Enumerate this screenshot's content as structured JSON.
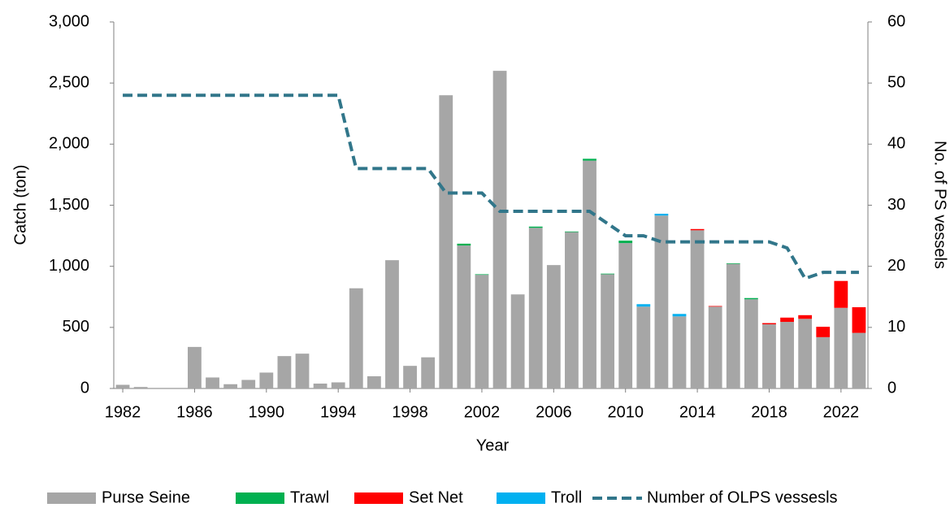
{
  "chart_data": {
    "type": "bar",
    "stacked": true,
    "x_label": "Year",
    "y_label": "Catch (ton)",
    "y2_label": "No. of PS vessels",
    "categories": [
      "1982",
      null,
      null,
      null,
      "1986",
      null,
      null,
      null,
      "1990",
      null,
      null,
      null,
      "1994",
      null,
      null,
      null,
      "1998",
      null,
      null,
      null,
      "2002",
      null,
      null,
      null,
      "2006",
      null,
      null,
      null,
      "2010",
      null,
      null,
      null,
      "2014",
      null,
      null,
      null,
      "2018",
      null,
      null,
      null,
      "2022",
      null
    ],
    "series": [
      {
        "name": "Purse Seine",
        "color": "#a6a6a6",
        "values": [
          30,
          12,
          0,
          0,
          340,
          90,
          35,
          70,
          130,
          265,
          285,
          40,
          50,
          820,
          100,
          1050,
          185,
          255,
          2400,
          1170,
          930,
          2600,
          770,
          1315,
          1010,
          1280,
          1865,
          935,
          1190,
          670,
          1415,
          590,
          1295,
          670,
          1020,
          730,
          525,
          545,
          570,
          420,
          660,
          455
        ]
      },
      {
        "name": "Trawl",
        "color": "#00b050",
        "values": [
          0,
          0,
          0,
          0,
          0,
          0,
          0,
          0,
          0,
          0,
          0,
          0,
          0,
          0,
          0,
          0,
          0,
          0,
          0,
          15,
          5,
          0,
          0,
          10,
          0,
          5,
          15,
          5,
          20,
          0,
          0,
          0,
          0,
          0,
          5,
          10,
          0,
          0,
          0,
          0,
          0,
          0
        ]
      },
      {
        "name": "Set Net",
        "color": "#ff0000",
        "values": [
          0,
          0,
          0,
          0,
          0,
          0,
          0,
          0,
          0,
          0,
          0,
          0,
          0,
          0,
          0,
          0,
          0,
          0,
          0,
          0,
          0,
          0,
          0,
          0,
          0,
          0,
          0,
          0,
          0,
          0,
          0,
          0,
          10,
          5,
          0,
          0,
          10,
          35,
          30,
          85,
          220,
          210
        ]
      },
      {
        "name": "Troll",
        "color": "#00b0f0",
        "values": [
          0,
          0,
          0,
          0,
          0,
          0,
          0,
          0,
          0,
          0,
          0,
          0,
          0,
          0,
          0,
          0,
          0,
          0,
          0,
          0,
          0,
          0,
          0,
          0,
          0,
          0,
          0,
          0,
          0,
          20,
          15,
          20,
          0,
          0,
          0,
          0,
          0,
          0,
          0,
          0,
          0,
          0
        ]
      },
      {
        "name": "Number of OLPS vessesls",
        "color": "#31768a",
        "type": "line",
        "axis": "y2",
        "values": [
          48,
          48,
          48,
          48,
          48,
          48,
          48,
          48,
          48,
          48,
          48,
          48,
          48,
          36,
          36,
          36,
          36,
          36,
          32,
          32,
          32,
          29,
          29,
          29,
          29,
          29,
          29,
          27,
          25,
          25,
          24,
          24,
          24,
          24,
          24,
          24,
          24,
          23,
          18,
          19,
          19,
          19
        ]
      }
    ],
    "ylim": [
      0,
      3000
    ],
    "yticks": [
      0,
      500,
      {
        "value": 1000,
        "label": "1,000"
      },
      {
        "value": 1500,
        "label": "1,500"
      },
      {
        "value": 2000,
        "label": "2,000"
      },
      {
        "value": 2500,
        "label": "2,500"
      },
      {
        "value": 3000,
        "label": "3,000"
      }
    ],
    "y2lim": [
      0,
      60
    ],
    "y2ticks": [
      0,
      10,
      20,
      30,
      40,
      50,
      60
    ],
    "grid": false,
    "legend": "bottom"
  }
}
